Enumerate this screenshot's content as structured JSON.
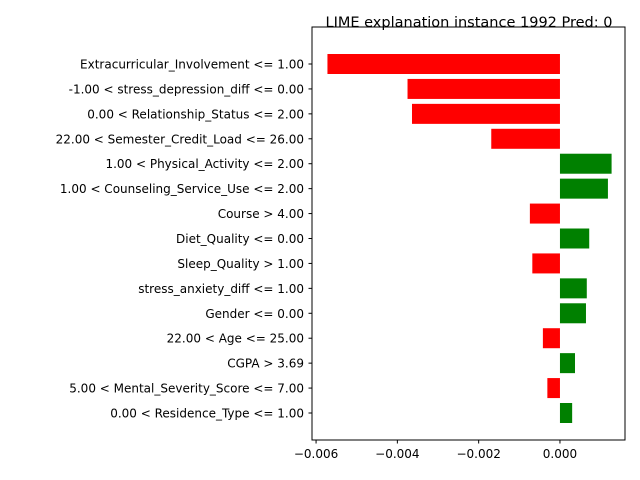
{
  "chart_data": {
    "type": "bar",
    "orientation": "horizontal",
    "title": "LIME explanation instance 1992 Pred: 0",
    "xlabel": "",
    "ylabel": "",
    "xlim": [
      -0.0061,
      0.0016
    ],
    "xticks": [
      -0.006,
      -0.004,
      -0.002,
      0.0
    ],
    "xtick_labels": [
      "−0.006",
      "−0.004",
      "−0.002",
      "0.000"
    ],
    "grid": false,
    "colors": {
      "positive": "#008000",
      "negative": "#ff0000"
    },
    "categories": [
      "Extracurricular_Involvement <= 1.00",
      "-1.00 < stress_depression_diff <= 0.00",
      "0.00 < Relationship_Status <= 2.00",
      "22.00 < Semester_Credit_Load <= 26.00",
      "1.00 < Physical_Activity <= 2.00",
      "1.00 < Counseling_Service_Use <= 2.00",
      "Course > 4.00",
      "Diet_Quality <= 0.00",
      "Sleep_Quality > 1.00",
      "stress_anxiety_diff <= 1.00",
      "Gender <= 0.00",
      "22.00 < Age <= 25.00",
      "CGPA > 3.69",
      "5.00 < Mental_Severity_Score <= 7.00",
      "0.00 < Residence_Type <= 1.00"
    ],
    "values": [
      -0.00572,
      -0.00375,
      -0.00364,
      -0.00169,
      0.00127,
      0.00118,
      -0.00074,
      0.00072,
      -0.00068,
      0.00066,
      0.00064,
      -0.00042,
      0.00037,
      -0.00031,
      0.0003
    ]
  }
}
